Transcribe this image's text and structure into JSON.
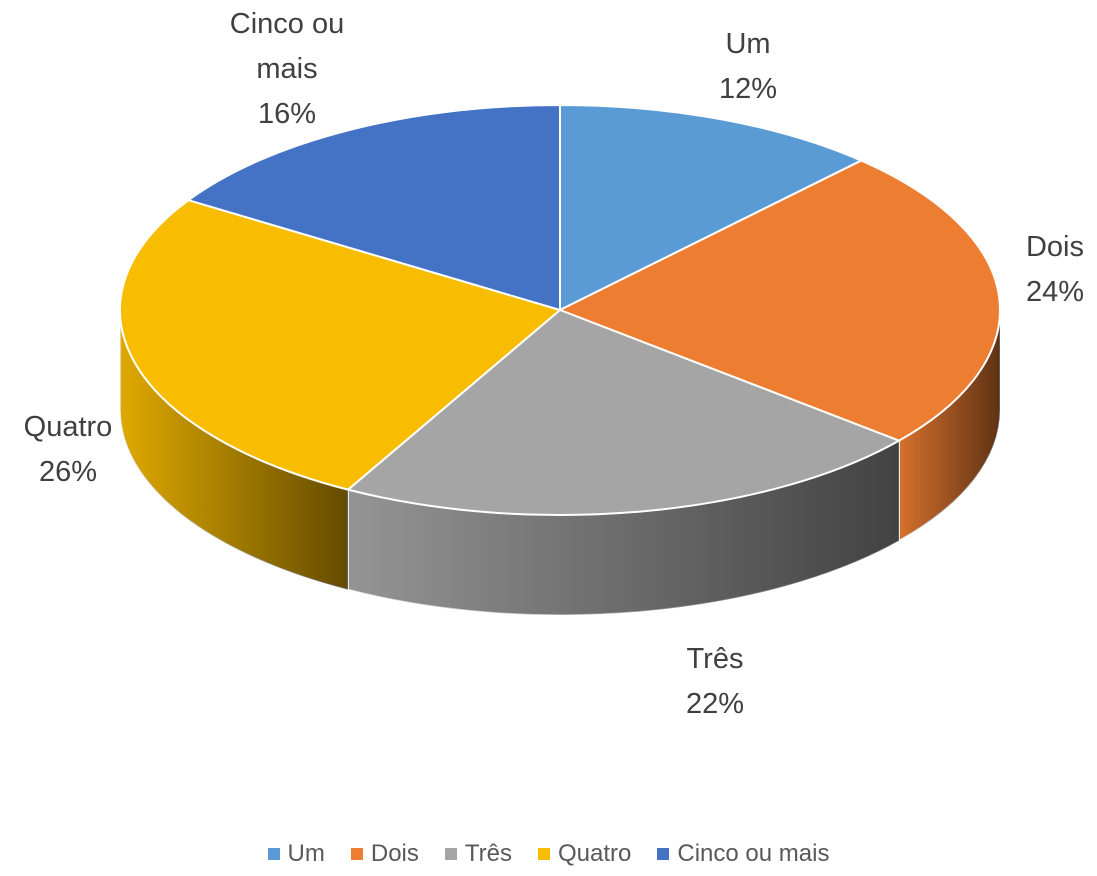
{
  "chart_data": {
    "type": "pie",
    "categories": [
      "Um",
      "Dois",
      "Três",
      "Quatro",
      "Cinco ou mais"
    ],
    "values": [
      12,
      24,
      22,
      26,
      16
    ],
    "value_labels": [
      "12%",
      "24%",
      "22%",
      "26%",
      "16%"
    ],
    "colors": [
      "#5b9bd5",
      "#ed7d31",
      "#a5a5a5",
      "#f8bc00",
      "#4472c4"
    ],
    "legend": "bottom"
  }
}
